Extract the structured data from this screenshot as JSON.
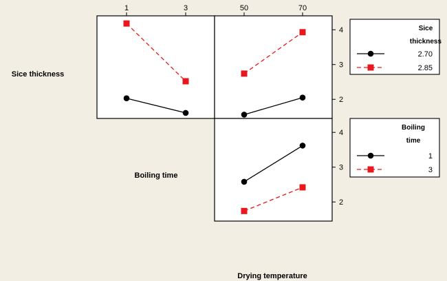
{
  "chart_data": {
    "type": "line",
    "row_factor_labels": [
      "Sice thickness",
      "Boiling time"
    ],
    "xlabel": "Drying temperature",
    "top_x_ticks": {
      "left": [
        "1",
        "3"
      ],
      "right": [
        "50",
        "70"
      ]
    },
    "right_y_ticks": [
      "4",
      "3",
      "2"
    ],
    "ylim": [
      1.45,
      4.4
    ],
    "legends": [
      {
        "title": [
          "Sice",
          "thickness"
        ],
        "entries": [
          "2.70",
          "2.85"
        ]
      },
      {
        "title": [
          "Boiling",
          "time"
        ],
        "entries": [
          "1",
          "3"
        ]
      }
    ],
    "panels": [
      {
        "row_factor": "Sice thickness",
        "x_factor": "Boiling time",
        "x": [
          "1",
          "3"
        ],
        "series": [
          {
            "name": "2.70",
            "values": [
              2.03,
              1.61
            ]
          },
          {
            "name": "2.85",
            "values": [
              4.18,
              2.52
            ]
          }
        ]
      },
      {
        "row_factor": "Sice thickness",
        "x_factor": "Drying temperature",
        "x": [
          "50",
          "70"
        ],
        "series": [
          {
            "name": "2.70",
            "values": [
              1.56,
              2.05
            ]
          },
          {
            "name": "2.85",
            "values": [
              2.74,
              3.93
            ]
          }
        ]
      },
      {
        "row_factor": "Boiling time",
        "x_factor": "Drying temperature",
        "x": [
          "50",
          "70"
        ],
        "series": [
          {
            "name": "1",
            "values": [
              2.58,
              3.62
            ]
          },
          {
            "name": "3",
            "values": [
              1.74,
              2.42
            ]
          }
        ]
      }
    ]
  },
  "colors": {
    "series1": "#000000",
    "series2": "#e8191e"
  }
}
